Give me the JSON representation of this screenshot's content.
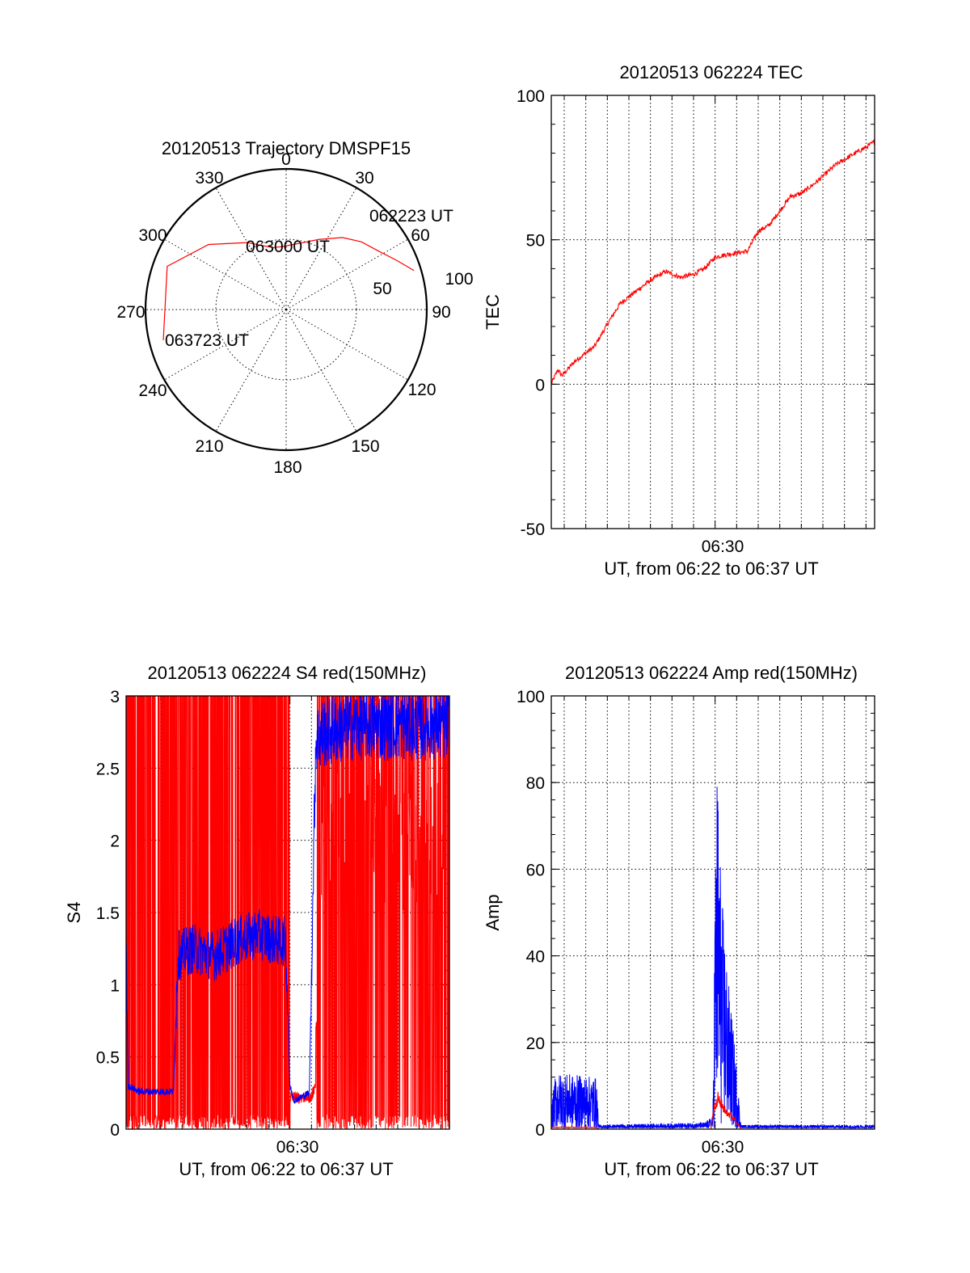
{
  "chart_data": [
    {
      "type": "polar",
      "title": "20120513 Trajectory DMSPF15",
      "angle_labels": [
        "0",
        "30",
        "60",
        "90",
        "120",
        "150",
        "180",
        "210",
        "240",
        "270",
        "300",
        "330"
      ],
      "radius_labels": [
        "50",
        "100"
      ],
      "rlim": [
        0,
        100
      ],
      "grid": true,
      "series": [
        {
          "color": "#ff0000",
          "points": [
            {
              "az": 73,
              "zen": 95
            },
            {
              "az": 66,
              "zen": 86
            },
            {
              "az": 58,
              "zen": 78
            },
            {
              "az": 48,
              "zen": 72
            },
            {
              "az": 38,
              "zen": 65
            },
            {
              "az": 25,
              "zen": 55
            },
            {
              "az": -2,
              "zen": 45
            },
            {
              "az": -12,
              "zen": 45
            },
            {
              "az": -30,
              "zen": 55
            },
            {
              "az": -50,
              "zen": 72
            },
            {
              "az": -70,
              "zen": 90
            },
            {
              "az": -104,
              "zen": 90
            }
          ]
        }
      ],
      "annotations": [
        "062223 UT",
        "063000 UT",
        "063723 UT"
      ]
    },
    {
      "type": "line",
      "title": "20120513 062224 TEC",
      "ylabel": "TEC",
      "xlabel": "UT, from 06:22 to 06:37 UT",
      "x_tick_labels": [
        "06:30"
      ],
      "xlim_min": [
        22.4,
        37.4
      ],
      "ylim": [
        -50,
        100
      ],
      "y_ticks": [
        -50,
        0,
        50,
        100
      ],
      "grid": true,
      "series": [
        {
          "color": "#ff0000",
          "x": [
            22.4,
            22.7,
            22.9,
            23.5,
            24.4,
            25.1,
            25.6,
            26.3,
            27.0,
            27.7,
            28.4,
            29.0,
            29.5,
            30.0,
            30.6,
            31.5,
            32.0,
            32.5,
            33.0,
            33.5,
            34.0,
            34.7,
            35.6,
            36.5,
            37.0,
            37.4
          ],
          "y": [
            0,
            5,
            3,
            8,
            13,
            22,
            28,
            32,
            36,
            39,
            37,
            38,
            40,
            44,
            45,
            46,
            53,
            55,
            60,
            65,
            66,
            70,
            76,
            80,
            82,
            84
          ]
        }
      ]
    },
    {
      "type": "line",
      "title": "20120513 062224 S4 red(150MHz)",
      "ylabel": "S4",
      "xlabel": "UT, from 06:22 to 06:37 UT",
      "x_tick_labels": [
        "06:30"
      ],
      "xlim_min": [
        22.4,
        37.4
      ],
      "ylim": [
        0,
        3
      ],
      "y_ticks": [
        "0",
        "0.5",
        "1",
        "1.5",
        "2",
        "2.5",
        "3"
      ],
      "grid": true,
      "series": [
        {
          "color": "#ff0000",
          "x": [
            22.4,
            30.0,
            30.9,
            31.3,
            37.4
          ],
          "y": [
            1.5,
            1.5,
            0.2,
            1.7,
            3.0
          ]
        },
        {
          "color": "#0000ff",
          "x": [
            22.4,
            22.5,
            23.0,
            24.6,
            24.8,
            25.5,
            26.5,
            27.5,
            28.5,
            29.5,
            29.8,
            30.0,
            30.2,
            30.9,
            31.2,
            31.6,
            33.0,
            35.0,
            37.4
          ],
          "y": [
            1.3,
            0.3,
            0.26,
            0.26,
            1.2,
            1.25,
            1.2,
            1.3,
            1.35,
            1.3,
            1.3,
            0.3,
            0.2,
            0.25,
            2.7,
            2.75,
            2.8,
            2.8,
            2.8
          ]
        }
      ]
    },
    {
      "type": "line",
      "title": "20120513 062224 Amp red(150MHz)",
      "ylabel": "Amp",
      "xlabel": "UT, from 06:22 to 06:37 UT",
      "x_tick_labels": [
        "06:30"
      ],
      "xlim_min": [
        22.4,
        37.4
      ],
      "ylim": [
        0,
        100
      ],
      "y_ticks": [
        0,
        20,
        40,
        60,
        80,
        100
      ],
      "grid": true,
      "series": [
        {
          "color": "#0000ff",
          "x": [
            22.4,
            22.6,
            24.5,
            24.6,
            29.5,
            29.9,
            30.0,
            30.1,
            30.3,
            30.6,
            30.9,
            31.2,
            37.4
          ],
          "y": [
            5,
            13,
            12,
            1,
            1.5,
            3,
            60,
            86,
            55,
            35,
            20,
            1,
            1
          ]
        },
        {
          "color": "#ff0000",
          "x": [
            22.4,
            24.5,
            24.6,
            29.8,
            29.9,
            30.1,
            30.5,
            30.9,
            31.2,
            37.4
          ],
          "y": [
            0.5,
            0.5,
            0,
            0,
            5,
            9,
            5,
            3,
            0,
            0
          ]
        }
      ]
    }
  ]
}
